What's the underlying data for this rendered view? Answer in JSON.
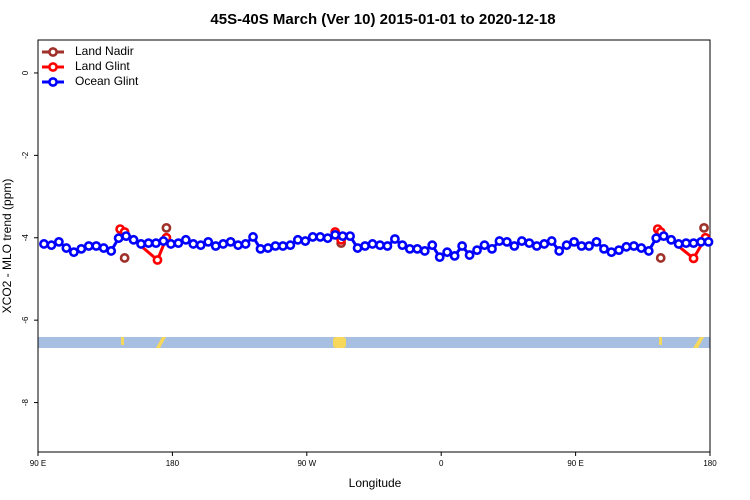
{
  "chart_data": {
    "type": "line",
    "title": "45S-40S March (Ver 10)   2015-01-01 to 2020-12-18",
    "x_label": "Longitude",
    "y_label": "XCO2 - MLO trend (ppm)",
    "xlim": [
      90,
      540
    ],
    "xticks": [
      {
        "value": 90,
        "label": "90 E"
      },
      180,
      {
        "value": 270,
        "label": "90 W"
      },
      {
        "value": 360,
        "label": "0"
      },
      {
        "value": 450,
        "label": "90 E"
      },
      {
        "value": 540,
        "label": "180"
      }
    ],
    "ylim": [
      -9.2,
      0.8
    ],
    "yticks": [
      0,
      -2,
      -4,
      -6,
      -8
    ],
    "legend": "top-left",
    "series": [
      {
        "name": "Land Nadir",
        "color": "#a0302a",
        "x": [
          148,
          162,
          176,
          230,
          293,
          400,
          507,
          520,
          536
        ],
        "values": [
          -4.49,
          null,
          -3.76,
          null,
          -4.13,
          null,
          -4.49,
          null,
          -3.76
        ]
      },
      {
        "name": "Land Glint",
        "color": "#ff0000",
        "x": [
          145,
          148,
          170,
          176,
          230,
          289,
          293,
          400,
          505,
          507,
          529,
          537
        ],
        "values": [
          -3.79,
          -3.86,
          -4.54,
          -4.0,
          null,
          -3.86,
          -4.05,
          null,
          -3.79,
          -3.86,
          -4.5,
          -4.0
        ]
      },
      {
        "name": "Ocean Glint",
        "color": "#0000ff",
        "x": [
          94,
          99,
          104,
          109,
          114,
          119,
          124,
          129,
          134,
          139,
          144,
          149,
          154,
          159,
          164,
          169,
          174,
          179,
          184,
          189,
          194,
          199,
          204,
          209,
          214,
          219,
          224,
          229,
          234,
          239,
          244,
          249,
          254,
          259,
          264,
          269,
          274,
          279,
          284,
          289,
          294,
          299,
          304,
          309,
          314,
          319,
          324,
          329,
          334,
          339,
          344,
          349,
          354,
          359,
          364,
          369,
          374,
          379,
          384,
          389,
          394,
          399,
          404,
          409,
          414,
          419,
          424,
          429,
          434,
          439,
          444,
          449,
          454,
          459,
          464,
          469,
          474,
          479,
          484,
          489,
          494,
          499,
          504,
          509,
          514,
          519,
          524,
          529,
          534,
          539
        ],
        "values": [
          -4.15,
          -4.18,
          -4.1,
          -4.25,
          -4.35,
          -4.27,
          -4.2,
          -4.2,
          -4.25,
          -4.32,
          -4.01,
          -3.96,
          -4.05,
          -4.15,
          -4.13,
          -4.13,
          -4.08,
          -4.15,
          -4.13,
          -4.05,
          -4.15,
          -4.18,
          -4.1,
          -4.2,
          -4.15,
          -4.1,
          -4.18,
          -4.15,
          -3.98,
          -4.27,
          -4.25,
          -4.2,
          -4.2,
          -4.18,
          -4.05,
          -4.08,
          -3.98,
          -3.98,
          -4.01,
          -3.93,
          -3.96,
          -3.96,
          -4.25,
          -4.2,
          -4.15,
          -4.18,
          -4.2,
          -4.03,
          -4.18,
          -4.27,
          -4.27,
          -4.32,
          -4.18,
          -4.47,
          -4.35,
          -4.44,
          -4.2,
          -4.42,
          -4.3,
          -4.18,
          -4.27,
          -4.08,
          -4.1,
          -4.2,
          -4.08,
          -4.13,
          -4.2,
          -4.15,
          -4.08,
          -4.32,
          -4.18,
          -4.1,
          -4.2,
          -4.2,
          -4.1,
          -4.27,
          -4.35,
          -4.3,
          -4.22,
          -4.2,
          -4.25,
          -4.32,
          -4.01,
          -3.96,
          -4.05,
          -4.15,
          -4.13,
          -4.13,
          -4.1,
          -4.1
        ]
      }
    ]
  }
}
